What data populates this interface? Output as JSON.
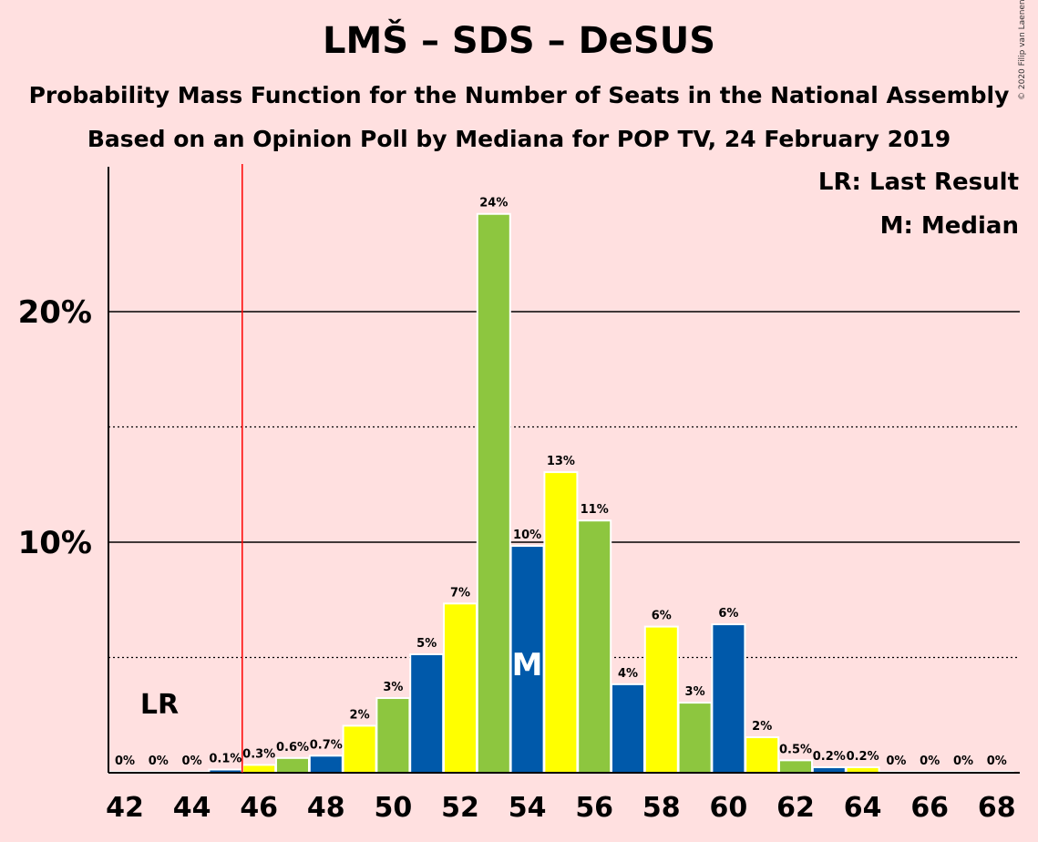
{
  "chart_data": {
    "type": "bar",
    "title": "LMŠ – SDS – DeSUS",
    "subtitle": "Probability Mass Function for the Number of Seats in the National Assembly",
    "subtitle2": "Based on an Opinion Poll by Mediana for POP TV, 24 February 2019",
    "copyright": "© 2020 Filip van Laenen",
    "legend": [
      "LR: Last Result",
      "M: Median"
    ],
    "legend_placement": "top-right",
    "x": [
      42,
      43,
      44,
      45,
      46,
      47,
      48,
      49,
      50,
      51,
      52,
      53,
      54,
      55,
      56,
      57,
      58,
      59,
      60,
      61,
      62,
      63,
      64,
      65,
      66,
      67,
      68
    ],
    "values": [
      0,
      0,
      0,
      0.1,
      0.3,
      0.6,
      0.7,
      2.0,
      3.2,
      5.1,
      7.3,
      24.2,
      9.8,
      13.0,
      10.9,
      3.8,
      6.3,
      3.0,
      6.4,
      1.5,
      0.5,
      0.2,
      0.2,
      0,
      0,
      0,
      0
    ],
    "value_labels": [
      "0%",
      "0%",
      "0%",
      "0.1%",
      "0.3%",
      "0.6%",
      "0.7%",
      "2%",
      "3%",
      "5%",
      "7%",
      "24%",
      "10%",
      "13%",
      "11%",
      "4%",
      "6%",
      "3%",
      "6%",
      "2%",
      "0.5%",
      "0.2%",
      "0.2%",
      "0%",
      "0%",
      "0%",
      "0%"
    ],
    "x_tick_labels": [
      "42",
      "44",
      "46",
      "48",
      "50",
      "52",
      "54",
      "56",
      "58",
      "60",
      "62",
      "64",
      "66",
      "68"
    ],
    "y_tick_values": [
      10,
      20
    ],
    "y_tick_labels": [
      "10%",
      "20%"
    ],
    "ylim": [
      0,
      26.3
    ],
    "dotted_gridlines": [
      5,
      15
    ],
    "last_result_seat": 45.5,
    "last_result_label": "LR",
    "median_seat": 54,
    "median_label": "M",
    "bar_colors": [
      "#0059AA",
      "#FFFF00",
      "#8DC63F"
    ],
    "lr_line_color": "#FF0000"
  }
}
